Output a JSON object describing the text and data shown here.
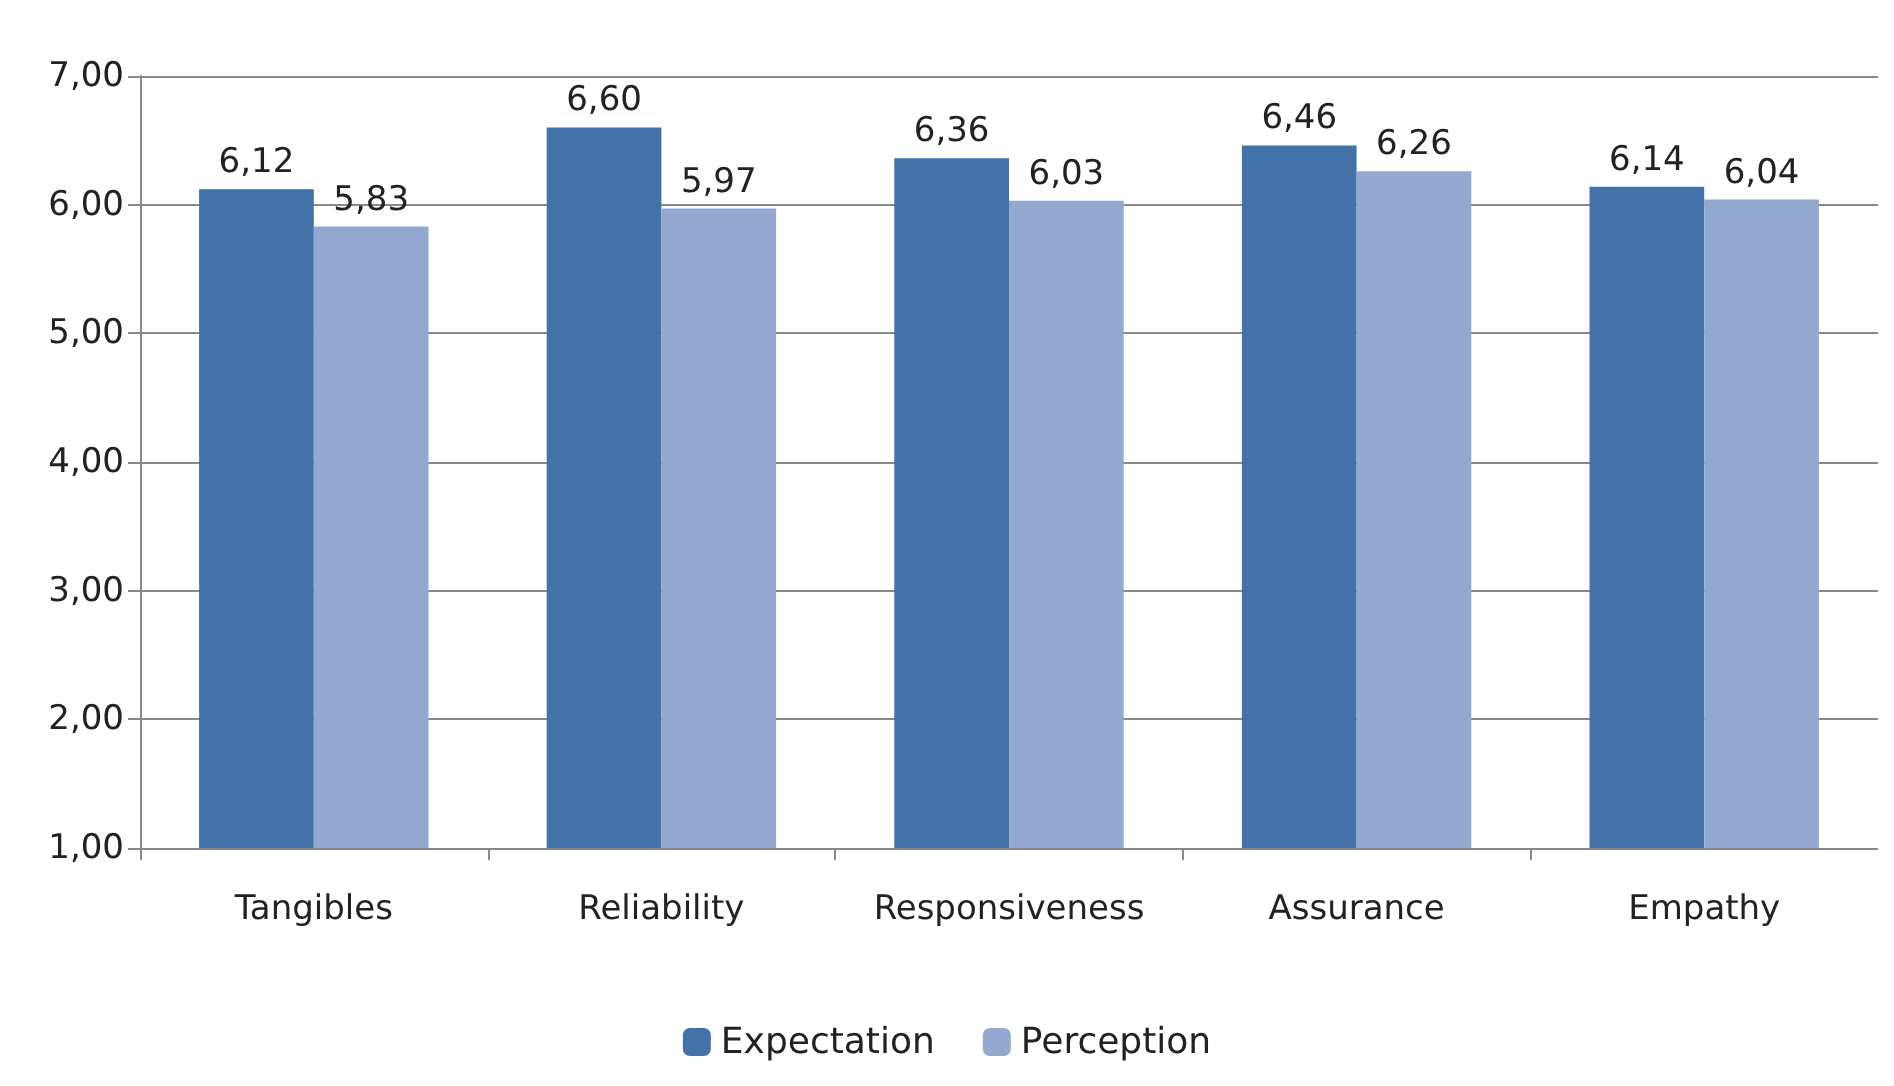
{
  "chart_data": {
    "type": "bar",
    "categories": [
      "Tangibles",
      "Reliability",
      "Responsiveness",
      "Assurance",
      "Empathy"
    ],
    "series": [
      {
        "name": "Expectation",
        "color": "#4272a8",
        "values": [
          6.12,
          6.6,
          6.36,
          6.46,
          6.14
        ],
        "value_labels": [
          "6,12",
          "6,60",
          "6,36",
          "6,46",
          "6,14"
        ]
      },
      {
        "name": "Perception",
        "color": "#93a9cf",
        "values": [
          5.83,
          5.97,
          6.03,
          6.26,
          6.04
        ],
        "value_labels": [
          "5,83",
          "5,97",
          "6,03",
          "6,26",
          "6,04"
        ]
      }
    ],
    "ylim": [
      1,
      7
    ],
    "yticks": [
      {
        "value": 1,
        "label": "1,00"
      },
      {
        "value": 2,
        "label": "2,00"
      },
      {
        "value": 3,
        "label": "3,00"
      },
      {
        "value": 4,
        "label": "4,00"
      },
      {
        "value": 5,
        "label": "5,00"
      },
      {
        "value": 6,
        "label": "6,00"
      },
      {
        "value": 7,
        "label": "7,00"
      }
    ],
    "grid": "y",
    "legend": "bottom"
  }
}
